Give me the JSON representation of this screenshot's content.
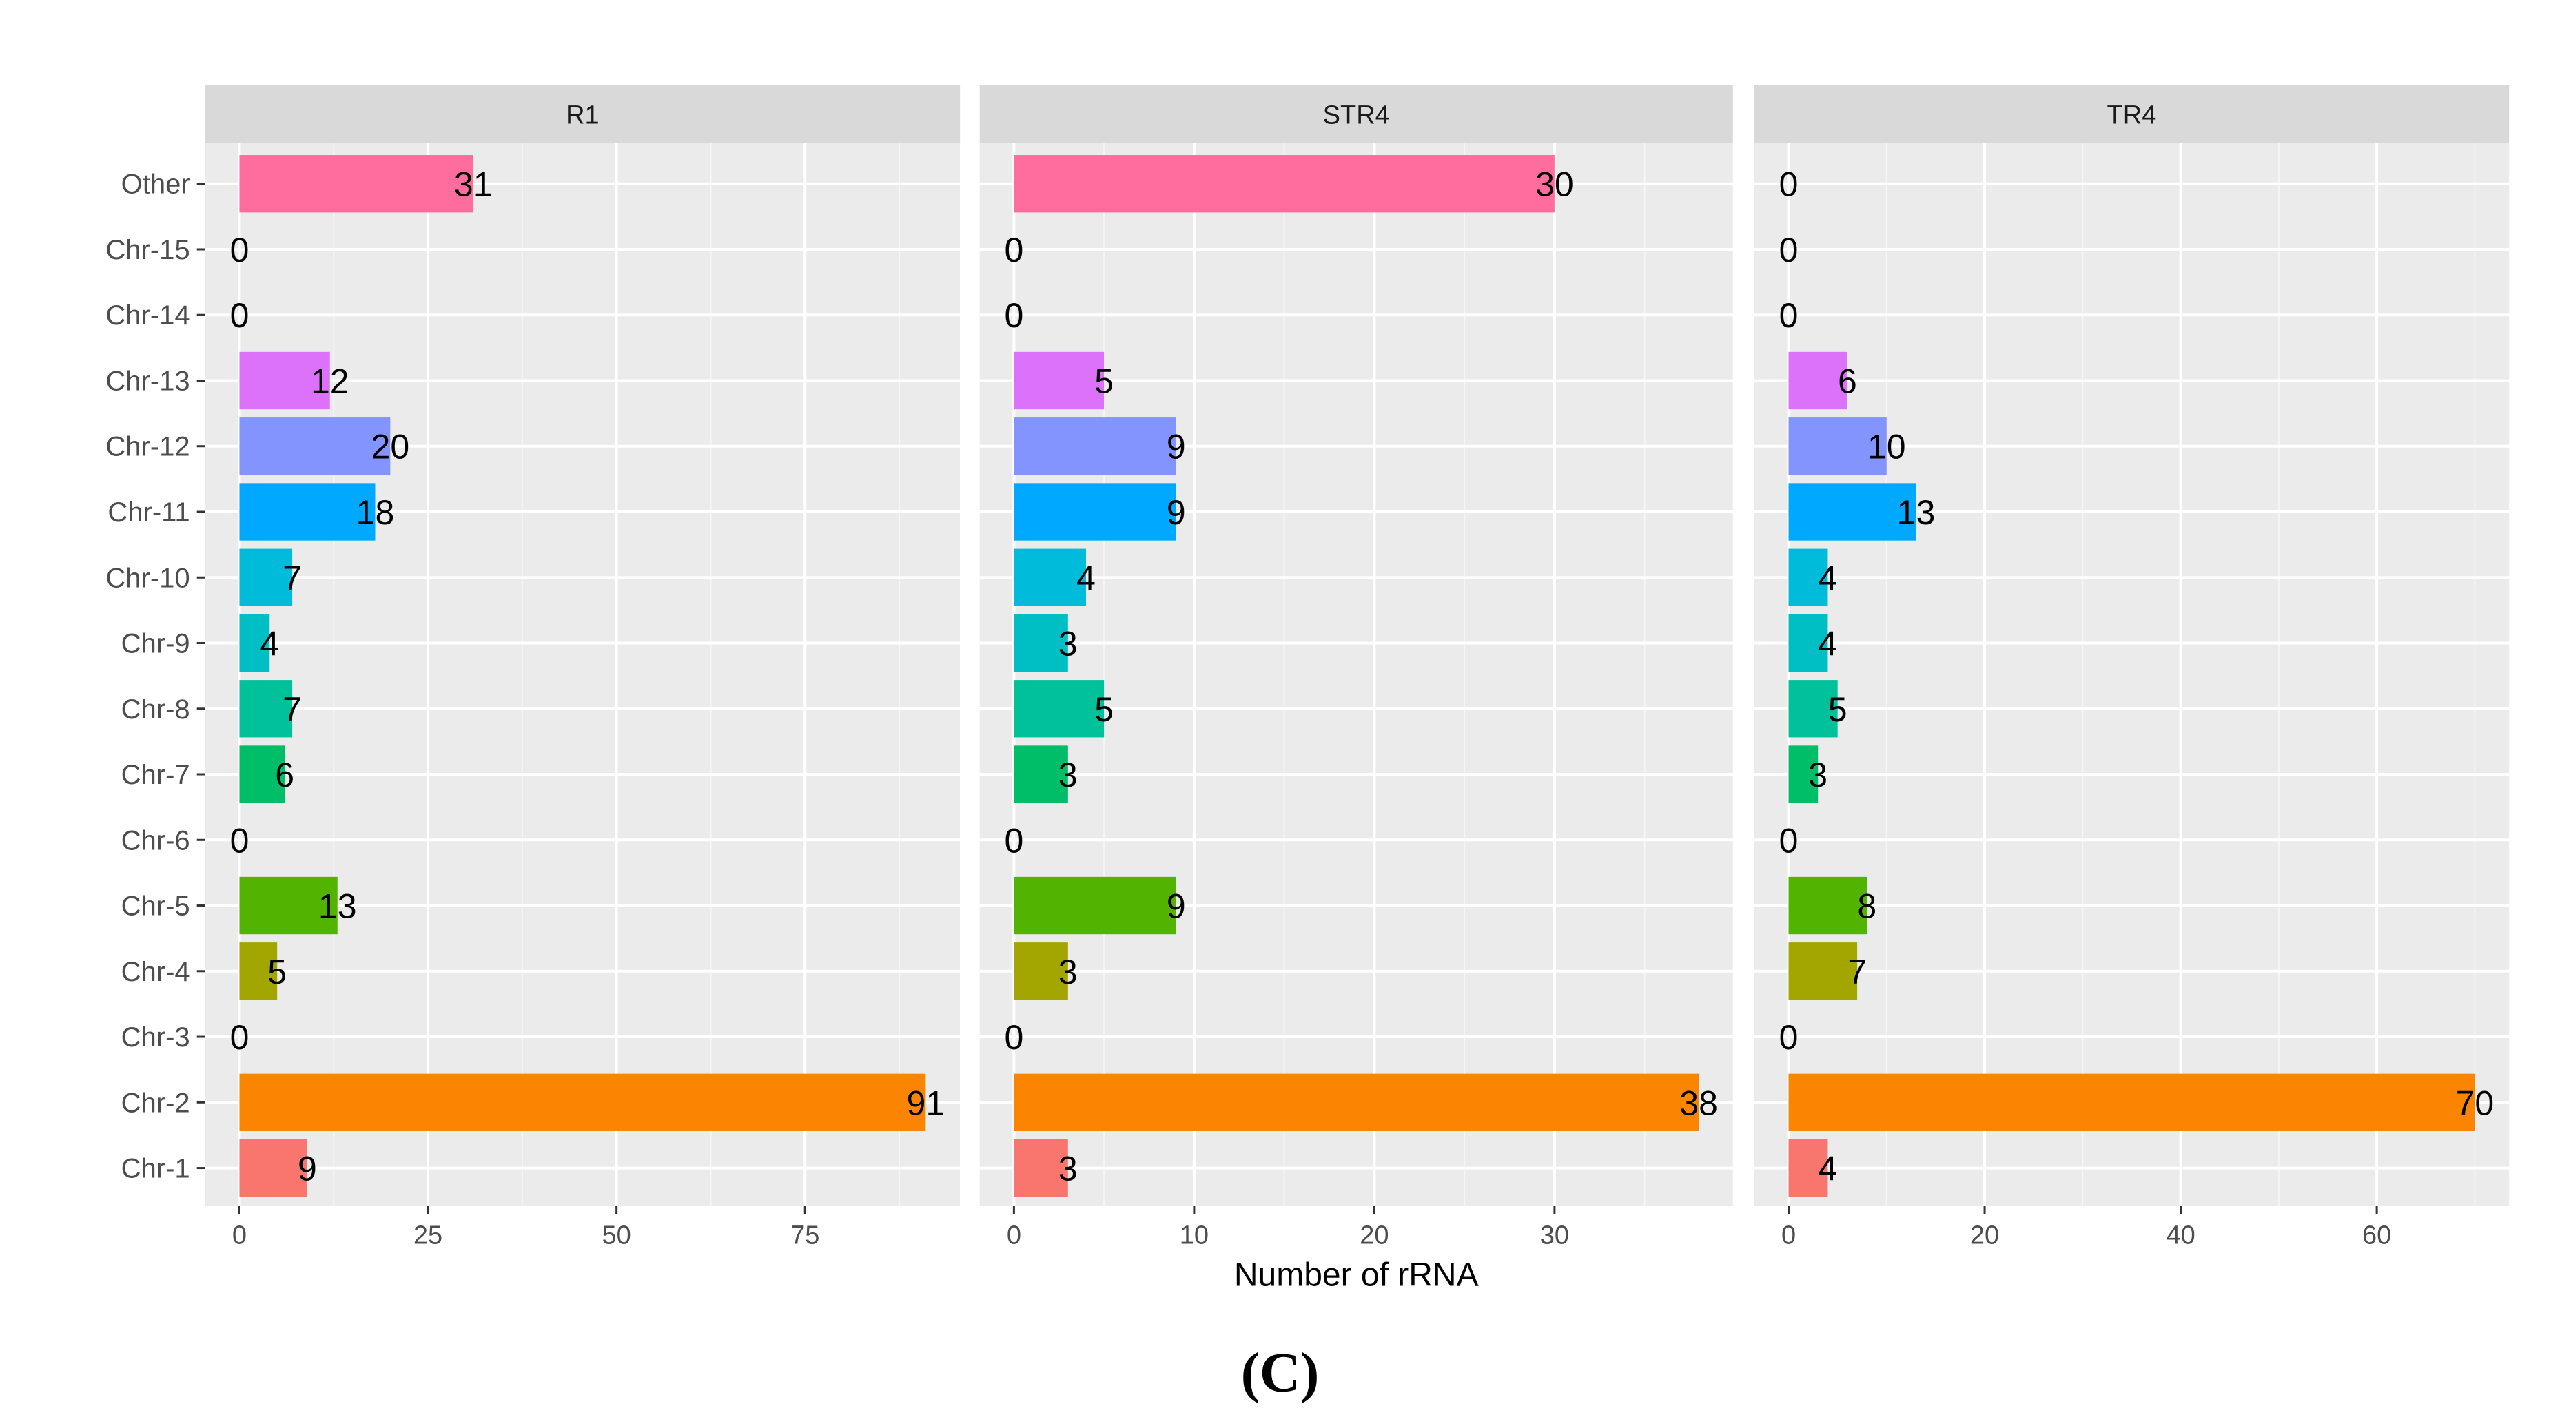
{
  "chart_data": {
    "type": "bar",
    "orientation": "horizontal",
    "xlabel": "Number of rRNA",
    "caption": "(C)",
    "categories": [
      "Other",
      "Chr-15",
      "Chr-14",
      "Chr-13",
      "Chr-12",
      "Chr-11",
      "Chr-10",
      "Chr-9",
      "Chr-8",
      "Chr-7",
      "Chr-6",
      "Chr-5",
      "Chr-4",
      "Chr-3",
      "Chr-2",
      "Chr-1"
    ],
    "colors": {
      "Other": "#FF6C9E",
      "Chr-15": "#FF61C3",
      "Chr-14": "#F564E3",
      "Chr-13": "#DC71FA",
      "Chr-12": "#8494FF",
      "Chr-11": "#00A9FF",
      "Chr-10": "#00BBDA",
      "Chr-9": "#00BFC4",
      "Chr-8": "#00C19A",
      "Chr-7": "#00BE67",
      "Chr-6": "#00BA38",
      "Chr-5": "#53B400",
      "Chr-4": "#A3A500",
      "Chr-3": "#C49A00",
      "Chr-2": "#FB8500",
      "Chr-1": "#F8766D"
    },
    "panels": [
      {
        "name": "R1",
        "xlim": [
          -4.55,
          95.55
        ],
        "ticks": [
          0,
          25,
          50,
          75
        ],
        "tick_labels": [
          "0",
          "25",
          "50",
          "75"
        ],
        "values": [
          31,
          0,
          0,
          12,
          20,
          18,
          7,
          4,
          7,
          6,
          0,
          13,
          5,
          0,
          91,
          9
        ],
        "value_labels": [
          "31",
          "0",
          "0",
          "12",
          "20",
          "18",
          "7",
          "4",
          "7",
          "6",
          "0",
          "13",
          "5",
          "0",
          "91",
          "9"
        ]
      },
      {
        "name": "STR4",
        "xlim": [
          -1.9,
          39.9
        ],
        "ticks": [
          0,
          10,
          20,
          30
        ],
        "tick_labels": [
          "0",
          "10",
          "20",
          "30"
        ],
        "values": [
          30,
          0,
          0,
          5,
          9,
          9,
          4,
          3,
          5,
          3,
          0,
          9,
          3,
          0,
          38,
          3
        ],
        "value_labels": [
          "30",
          "0",
          "0",
          "5",
          "9",
          "9",
          "4",
          "3",
          "5",
          "3",
          "0",
          "9",
          "3",
          "0",
          "38",
          "3"
        ]
      },
      {
        "name": "TR4",
        "xlim": [
          -3.5,
          73.5
        ],
        "ticks": [
          0,
          20,
          40,
          60
        ],
        "tick_labels": [
          "0",
          "20",
          "40",
          "60"
        ],
        "values": [
          0,
          0,
          0,
          6,
          10,
          13,
          4,
          4,
          5,
          3,
          0,
          8,
          7,
          0,
          70,
          4
        ],
        "value_labels": [
          "0",
          "0",
          "0",
          "6",
          "10",
          "13",
          "4",
          "4",
          "5",
          "3",
          "0",
          "8",
          "7",
          "0",
          "70",
          "4"
        ]
      }
    ]
  }
}
